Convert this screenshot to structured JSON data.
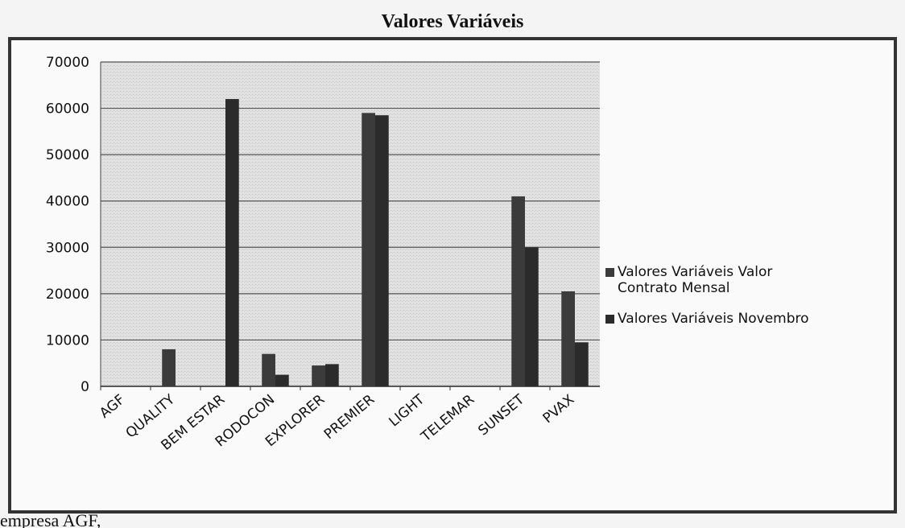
{
  "chart_data": {
    "type": "bar",
    "title": "Valores Variáveis",
    "categories": [
      "AGF",
      "QUALITY",
      "BEM ESTAR",
      "RODOCON",
      "EXPLORER",
      "PREMIER",
      "LIGHT",
      "TELEMAR",
      "SUNSET",
      "PVAX"
    ],
    "series": [
      {
        "name": "Valores Variáveis Valor Contrato Mensal",
        "color": "#3b3b3b",
        "values": [
          0,
          8000,
          0,
          7000,
          4500,
          59000,
          0,
          0,
          41000,
          20500
        ]
      },
      {
        "name": "Valores Variáveis Novembro",
        "color": "#2b2b2b",
        "values": [
          0,
          0,
          62000,
          2500,
          4800,
          58500,
          0,
          0,
          30000,
          9500
        ]
      }
    ],
    "ylim": [
      0,
      70000
    ],
    "yticks": [
      0,
      10000,
      20000,
      30000,
      40000,
      50000,
      60000,
      70000
    ],
    "grid": true,
    "legend": "right",
    "footer_text": "empresa AGF,"
  }
}
